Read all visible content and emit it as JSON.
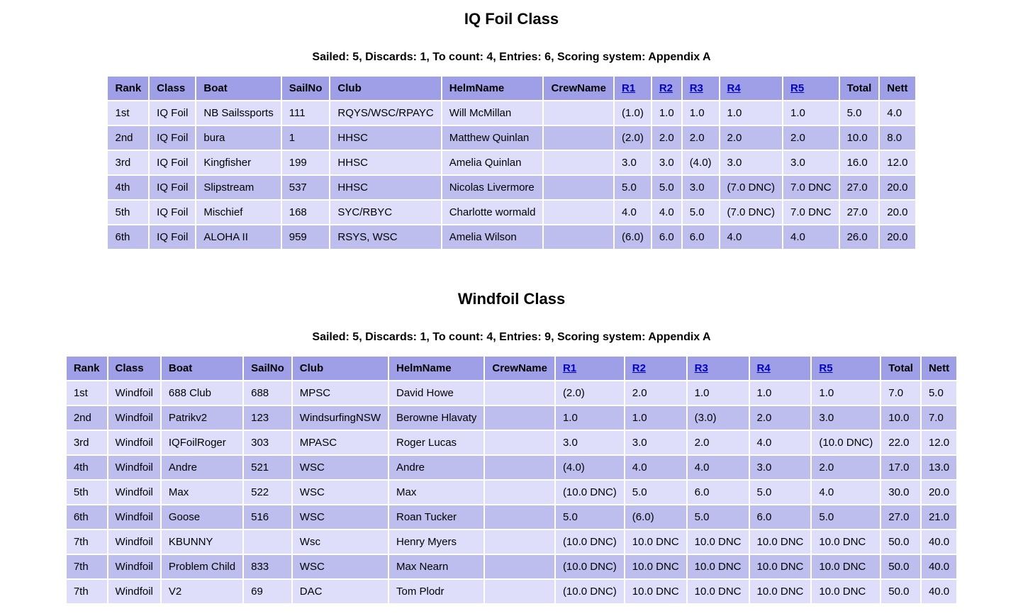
{
  "colors": {
    "header_bg": "#9e9fe6",
    "row_odd_bg": "#dedefa",
    "row_even_bg": "#bdbdee",
    "link_color": "#0000cc",
    "text_color": "#000000"
  },
  "columns": [
    "Rank",
    "Class",
    "Boat",
    "SailNo",
    "Club",
    "HelmName",
    "CrewName",
    "R1",
    "R2",
    "R3",
    "R4",
    "R5",
    "Total",
    "Nett"
  ],
  "link_columns": [
    "R1",
    "R2",
    "R3",
    "R4",
    "R5"
  ],
  "tables": [
    {
      "title": "IQ Foil Class",
      "summary": "Sailed: 5, Discards: 1, To count: 4, Entries: 6, Scoring system: Appendix A",
      "rows": [
        [
          "1st",
          "IQ Foil",
          "NB Sailssports",
          "111",
          "RQYS/WSC/RPAYC",
          "Will McMillan",
          "",
          "(1.0)",
          "1.0",
          "1.0",
          "1.0",
          "1.0",
          "5.0",
          "4.0"
        ],
        [
          "2nd",
          "IQ Foil",
          "bura",
          "1",
          "HHSC",
          "Matthew Quinlan",
          "",
          "(2.0)",
          "2.0",
          "2.0",
          "2.0",
          "2.0",
          "10.0",
          "8.0"
        ],
        [
          "3rd",
          "IQ Foil",
          "Kingfisher",
          "199",
          "HHSC",
          "Amelia Quinlan",
          "",
          "3.0",
          "3.0",
          "(4.0)",
          "3.0",
          "3.0",
          "16.0",
          "12.0"
        ],
        [
          "4th",
          "IQ Foil",
          "Slipstream",
          "537",
          "HHSC",
          "Nicolas Livermore",
          "",
          "5.0",
          "5.0",
          "3.0",
          "(7.0 DNC)",
          "7.0 DNC",
          "27.0",
          "20.0"
        ],
        [
          "5th",
          "IQ Foil",
          "Mischief",
          "168",
          "SYC/RBYC",
          "Charlotte wormald",
          "",
          "4.0",
          "4.0",
          "5.0",
          "(7.0 DNC)",
          "7.0 DNC",
          "27.0",
          "20.0"
        ],
        [
          "6th",
          "IQ Foil",
          "ALOHA II",
          "959",
          "RSYS, WSC",
          "Amelia Wilson",
          "",
          "(6.0)",
          "6.0",
          "6.0",
          "4.0",
          "4.0",
          "26.0",
          "20.0"
        ]
      ]
    },
    {
      "title": "Windfoil Class",
      "summary": "Sailed: 5, Discards: 1, To count: 4, Entries: 9, Scoring system: Appendix A",
      "rows": [
        [
          "1st",
          "Windfoil",
          "688 Club",
          "688",
          "MPSC",
          "David Howe",
          "",
          "(2.0)",
          "2.0",
          "1.0",
          "1.0",
          "1.0",
          "7.0",
          "5.0"
        ],
        [
          "2nd",
          "Windfoil",
          "Patrikv2",
          "123",
          "WindsurfingNSW",
          "Berowne Hlavaty",
          "",
          "1.0",
          "1.0",
          "(3.0)",
          "2.0",
          "3.0",
          "10.0",
          "7.0"
        ],
        [
          "3rd",
          "Windfoil",
          "IQFoilRoger",
          "303",
          "MPASC",
          "Roger Lucas",
          "",
          "3.0",
          "3.0",
          "2.0",
          "4.0",
          "(10.0 DNC)",
          "22.0",
          "12.0"
        ],
        [
          "4th",
          "Windfoil",
          "Andre",
          "521",
          "WSC",
          "Andre",
          "",
          "(4.0)",
          "4.0",
          "4.0",
          "3.0",
          "2.0",
          "17.0",
          "13.0"
        ],
        [
          "5th",
          "Windfoil",
          "Max",
          "522",
          "WSC",
          "Max",
          "",
          "(10.0 DNC)",
          "5.0",
          "6.0",
          "5.0",
          "4.0",
          "30.0",
          "20.0"
        ],
        [
          "6th",
          "Windfoil",
          "Goose",
          "516",
          "WSC",
          "Roan Tucker",
          "",
          "5.0",
          "(6.0)",
          "5.0",
          "6.0",
          "5.0",
          "27.0",
          "21.0"
        ],
        [
          "7th",
          "Windfoil",
          "KBUNNY",
          "",
          "Wsc",
          "Henry Myers",
          "",
          "(10.0 DNC)",
          "10.0 DNC",
          "10.0 DNC",
          "10.0 DNC",
          "10.0 DNC",
          "50.0",
          "40.0"
        ],
        [
          "7th",
          "Windfoil",
          "Problem Child",
          "833",
          "WSC",
          "Max Nearn",
          "",
          "(10.0 DNC)",
          "10.0 DNC",
          "10.0 DNC",
          "10.0 DNC",
          "10.0 DNC",
          "50.0",
          "40.0"
        ],
        [
          "7th",
          "Windfoil",
          "V2",
          "69",
          "DAC",
          "Tom Plodr",
          "",
          "(10.0 DNC)",
          "10.0 DNC",
          "10.0 DNC",
          "10.0 DNC",
          "10.0 DNC",
          "50.0",
          "40.0"
        ]
      ]
    }
  ]
}
